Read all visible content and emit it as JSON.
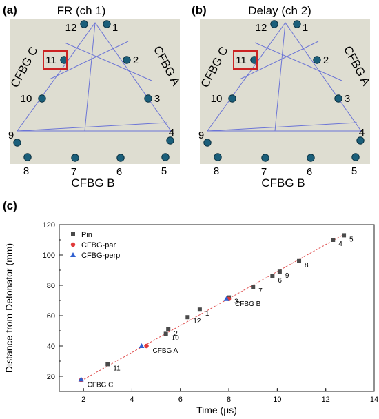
{
  "panels": {
    "a": {
      "label": "(a)",
      "title": "FR (ch 1)",
      "highlight_pin": "11"
    },
    "b": {
      "label": "(b)",
      "title": "Delay (ch 2)",
      "highlight_pin": "11"
    },
    "side_labels": {
      "left": "CFBG C",
      "right": "CFBG A",
      "bottom": "CFBG B"
    },
    "pins": [
      "1",
      "2",
      "3",
      "4",
      "5",
      "6",
      "7",
      "8",
      "9",
      "10",
      "11",
      "12"
    ]
  },
  "colors": {
    "panel_bg": "#deddd1",
    "triangle": "#6b74d6",
    "pin_fill": "#1b5f7a",
    "pin_stroke": "#0b3040",
    "highlight": "#cc2222",
    "pin_series": "#4a4a4a",
    "par_series": "#e03a3a",
    "perp_series": "#2f5fd0",
    "fit_line": "#e05050"
  },
  "chart_data": {
    "panel_label": "(c)",
    "type": "scatter",
    "xlabel": "Time (µs)",
    "ylabel": "Distance from Detonator (mm)",
    "xlim": [
      1,
      14
    ],
    "ylim": [
      10,
      120
    ],
    "xticks": [
      2,
      4,
      6,
      8,
      10,
      12,
      14
    ],
    "yticks": [
      20,
      40,
      60,
      80,
      100,
      120
    ],
    "legend_position": "top-left",
    "fit_line": {
      "x": [
        1.9,
        12.8
      ],
      "y": [
        17,
        114
      ]
    },
    "series": [
      {
        "name": "Pin",
        "marker": "square",
        "points": [
          {
            "x": 3.0,
            "y": 28,
            "label": "11"
          },
          {
            "x": 5.4,
            "y": 48,
            "label": "10"
          },
          {
            "x": 5.5,
            "y": 51,
            "label": "2"
          },
          {
            "x": 6.3,
            "y": 59,
            "label": "12"
          },
          {
            "x": 6.8,
            "y": 64,
            "label": "1"
          },
          {
            "x": 8.0,
            "y": 72,
            "label": "3"
          },
          {
            "x": 9.0,
            "y": 79,
            "label": "7"
          },
          {
            "x": 9.8,
            "y": 86,
            "label": "6"
          },
          {
            "x": 10.1,
            "y": 89,
            "label": "9"
          },
          {
            "x": 10.9,
            "y": 96,
            "label": "8"
          },
          {
            "x": 12.3,
            "y": 110,
            "label": "4"
          },
          {
            "x": 12.75,
            "y": 113,
            "label": "5"
          }
        ]
      },
      {
        "name": "CFBG-par",
        "marker": "circle",
        "points": [
          {
            "x": 1.9,
            "y": 17.5
          },
          {
            "x": 4.6,
            "y": 40
          },
          {
            "x": 8.0,
            "y": 71
          }
        ]
      },
      {
        "name": "CFBG-perp",
        "marker": "triangle",
        "points": [
          {
            "x": 1.9,
            "y": 18
          },
          {
            "x": 4.4,
            "y": 40
          },
          {
            "x": 7.9,
            "y": 71
          }
        ]
      }
    ],
    "annotations": [
      {
        "text": "CFBG C",
        "x": 1.9,
        "y": 17.5
      },
      {
        "text": "CFBG A",
        "x": 4.6,
        "y": 40
      },
      {
        "text": "CFBG B",
        "x": 8.0,
        "y": 71
      }
    ]
  }
}
